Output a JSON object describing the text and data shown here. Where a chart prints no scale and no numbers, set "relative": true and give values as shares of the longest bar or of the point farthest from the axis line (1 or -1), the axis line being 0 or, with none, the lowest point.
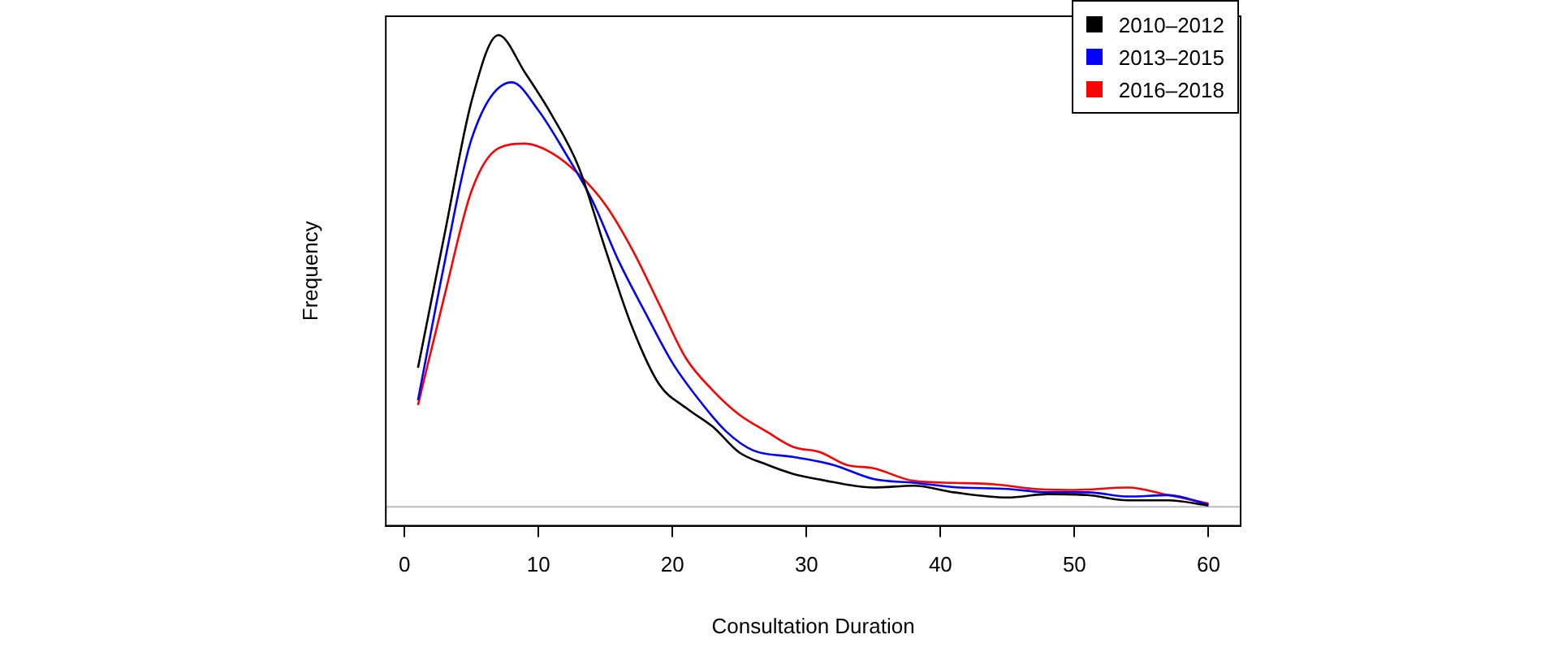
{
  "chart_data": {
    "type": "line",
    "xlabel": "Consultation Duration",
    "ylabel": "Frequency",
    "relative": true,
    "xlim": [
      -1.4,
      62.4
    ],
    "xticks": [
      0,
      10,
      20,
      30,
      40,
      50,
      60
    ],
    "grid": false,
    "legend": "top right",
    "marker": "none",
    "line_style": "solid",
    "ref_lines": [
      {
        "axis": "y",
        "value": 0,
        "color": "#bbbbbb"
      }
    ],
    "series": [
      {
        "name": "2010–2012",
        "color": "#000000",
        "x": [
          1,
          3,
          5,
          7,
          9,
          11,
          13,
          15,
          17,
          19,
          21,
          23,
          25,
          27,
          29,
          31,
          35,
          38,
          41,
          45,
          48,
          51,
          54,
          57,
          60
        ],
        "values": [
          0.295,
          0.58,
          0.86,
          1,
          0.92,
          0.83,
          0.72,
          0.545,
          0.38,
          0.26,
          0.21,
          0.17,
          0.115,
          0.09,
          0.07,
          0.058,
          0.041,
          0.045,
          0.031,
          0.02,
          0.027,
          0.025,
          0.014,
          0.014,
          0.003
        ]
      },
      {
        "name": "2013–2015",
        "color": "#0000ff",
        "x": [
          1,
          3,
          5,
          8,
          10,
          12,
          14,
          16,
          18,
          20,
          22,
          24,
          26,
          29,
          32,
          35,
          38,
          41,
          45,
          48,
          51,
          54,
          57,
          60
        ],
        "values": [
          0.226,
          0.52,
          0.78,
          0.9,
          0.84,
          0.75,
          0.65,
          0.52,
          0.41,
          0.305,
          0.226,
          0.16,
          0.12,
          0.106,
          0.089,
          0.059,
          0.051,
          0.042,
          0.038,
          0.031,
          0.031,
          0.022,
          0.025,
          0.005
        ]
      },
      {
        "name": "2016–2018",
        "color": "#ff0000",
        "x": [
          1,
          3,
          5,
          7,
          9,
          11,
          13,
          15,
          17,
          19,
          21,
          23,
          25,
          27,
          29,
          31,
          33,
          35,
          38,
          41,
          44,
          47,
          50,
          54,
          57,
          60
        ],
        "values": [
          0.216,
          0.45,
          0.67,
          0.76,
          0.77,
          0.75,
          0.705,
          0.64,
          0.545,
          0.43,
          0.315,
          0.247,
          0.195,
          0.16,
          0.127,
          0.116,
          0.089,
          0.082,
          0.055,
          0.051,
          0.048,
          0.038,
          0.036,
          0.041,
          0.025,
          0.007
        ]
      }
    ]
  }
}
